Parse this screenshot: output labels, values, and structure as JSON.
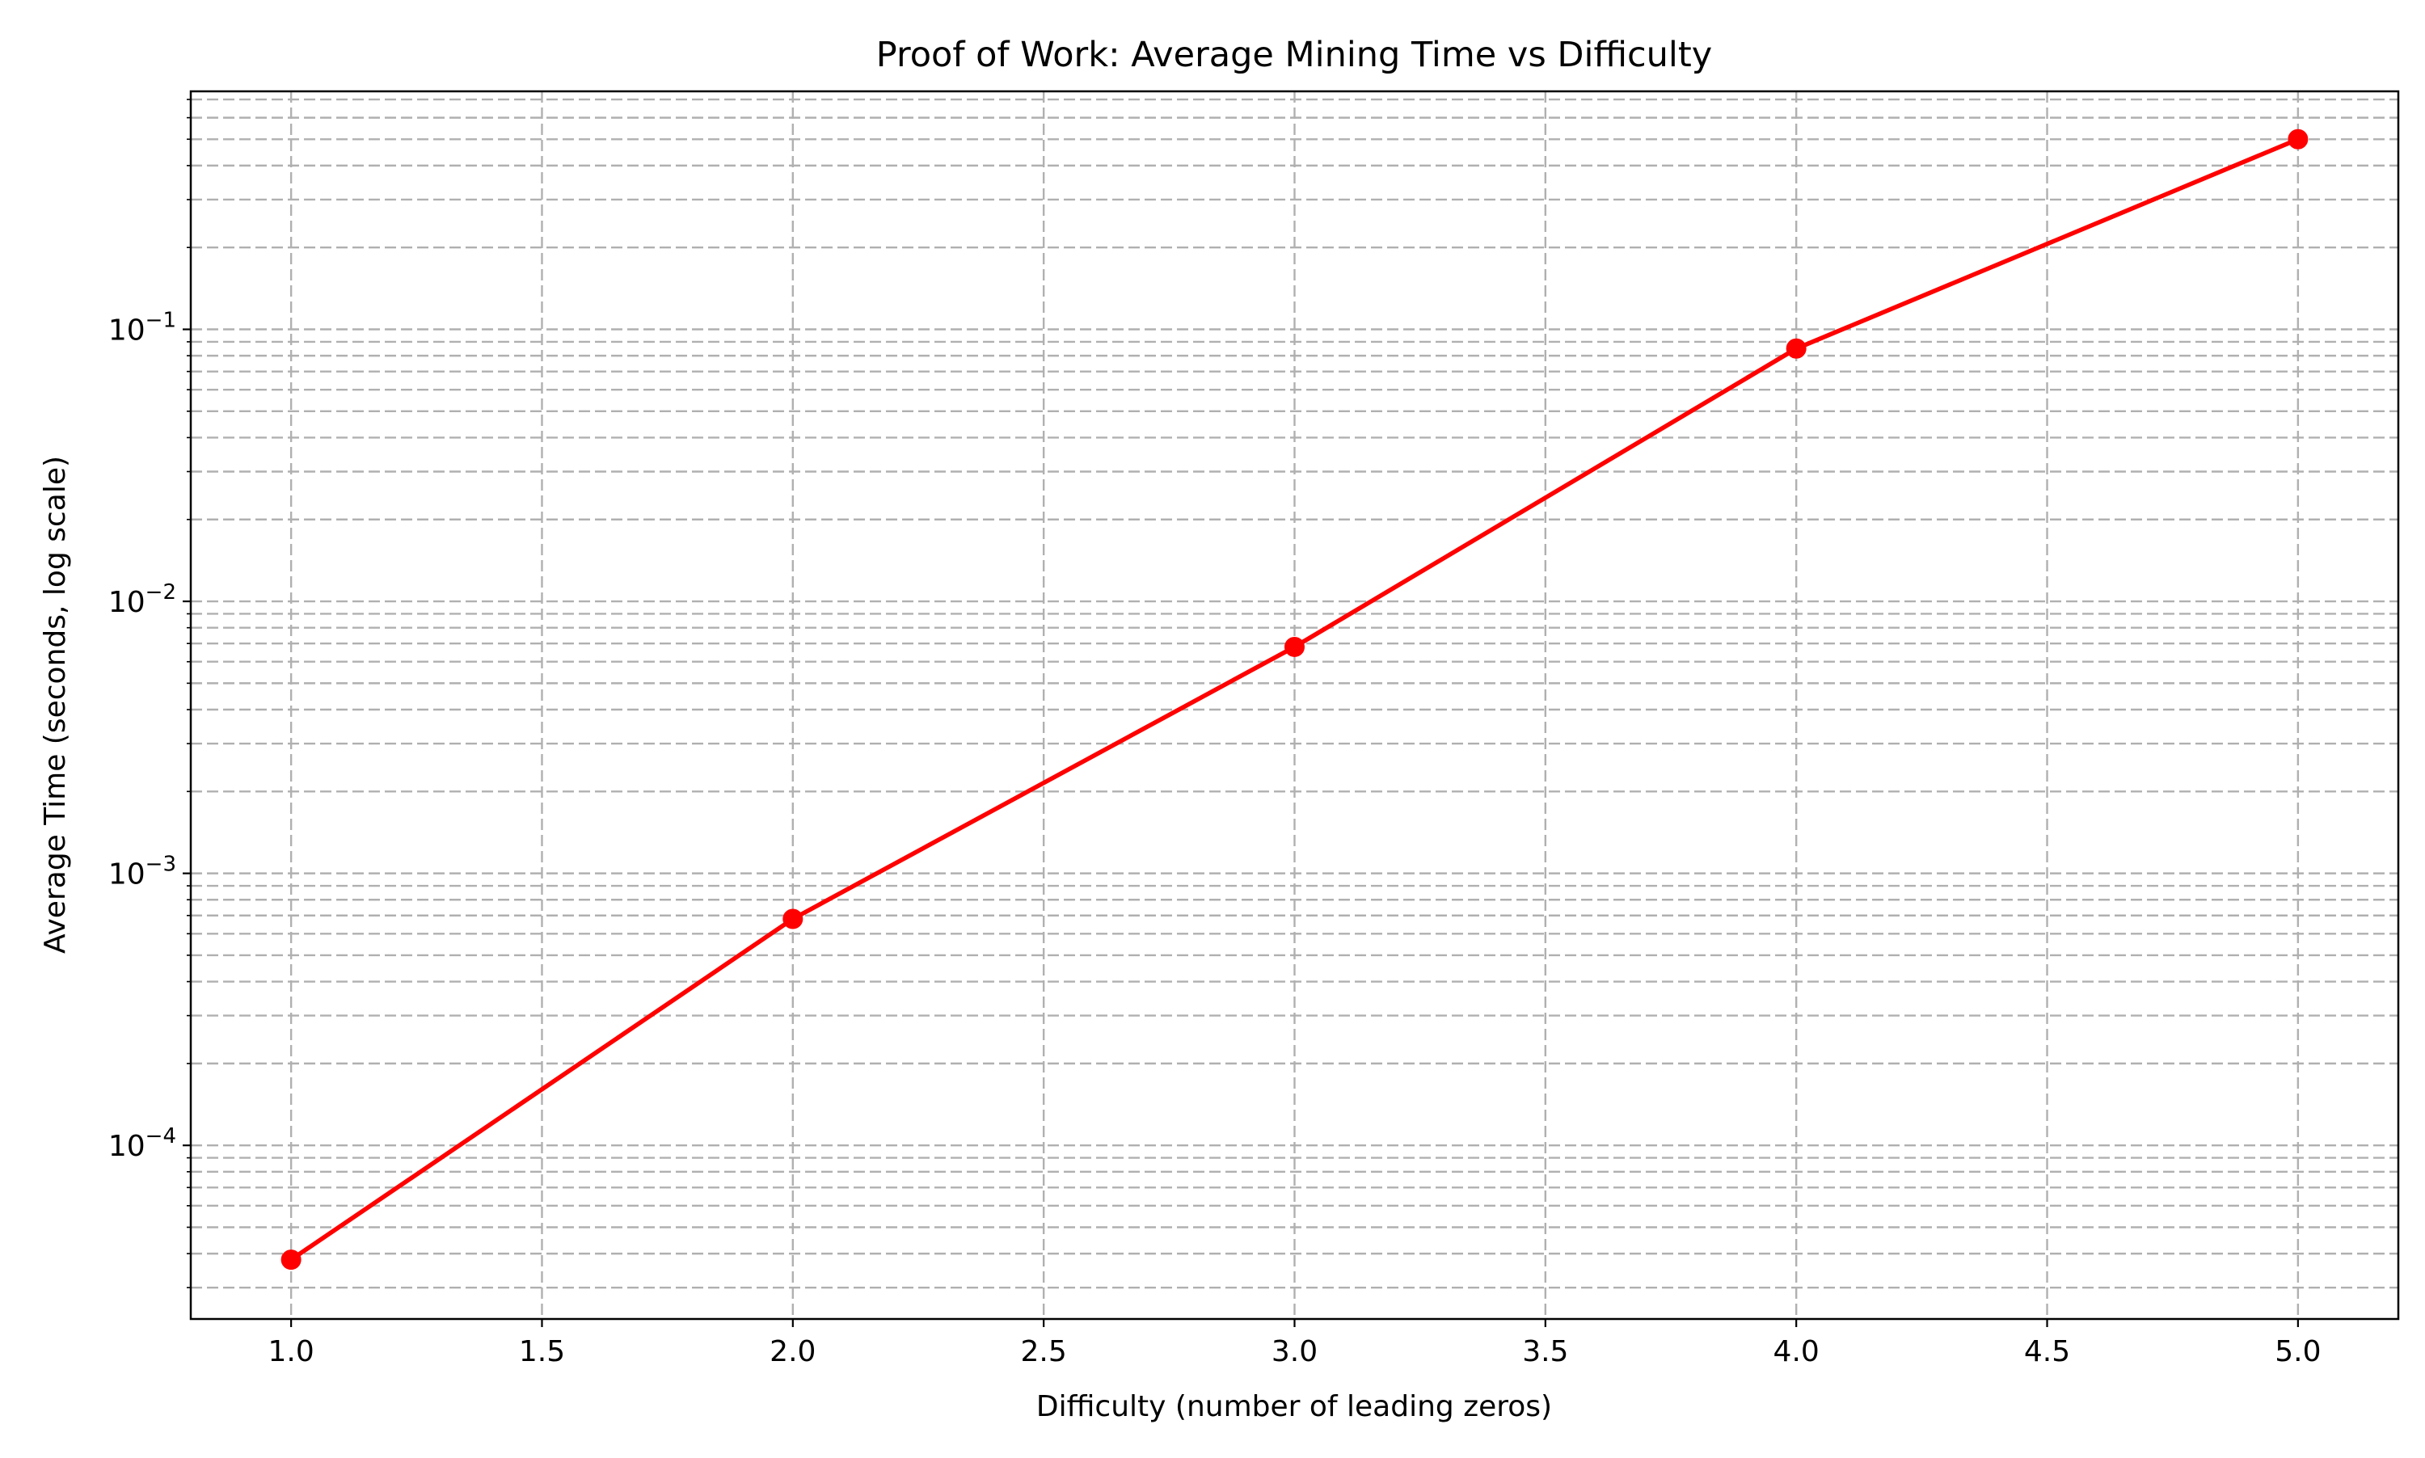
{
  "chart_data": {
    "type": "line",
    "title": "Proof of Work: Average Mining Time vs Difficulty",
    "xlabel": "Difficulty (number of leading zeros)",
    "ylabel": "Average Time (seconds, log scale)",
    "yscale": "log",
    "xlim": [
      0.8,
      5.2
    ],
    "ylim": [
      2.3e-05,
      0.75
    ],
    "x_ticks": [
      1.0,
      1.5,
      2.0,
      2.5,
      3.0,
      3.5,
      4.0,
      4.5,
      5.0
    ],
    "x_tick_labels": [
      "1.0",
      "1.5",
      "2.0",
      "2.5",
      "3.0",
      "3.5",
      "4.0",
      "4.5",
      "5.0"
    ],
    "y_major_ticks": [
      {
        "value": 0.0001,
        "base": "10",
        "exp": "−4"
      },
      {
        "value": 0.001,
        "base": "10",
        "exp": "−3"
      },
      {
        "value": 0.01,
        "base": "10",
        "exp": "−2"
      },
      {
        "value": 0.1,
        "base": "10",
        "exp": "−1"
      }
    ],
    "grid": true,
    "grid_which": "both",
    "series": [
      {
        "color": "#ff0000",
        "marker": "circle",
        "x": [
          1,
          2,
          3,
          4,
          5
        ],
        "y": [
          3.8e-05,
          0.00068,
          0.0068,
          0.085,
          0.5
        ]
      }
    ]
  }
}
